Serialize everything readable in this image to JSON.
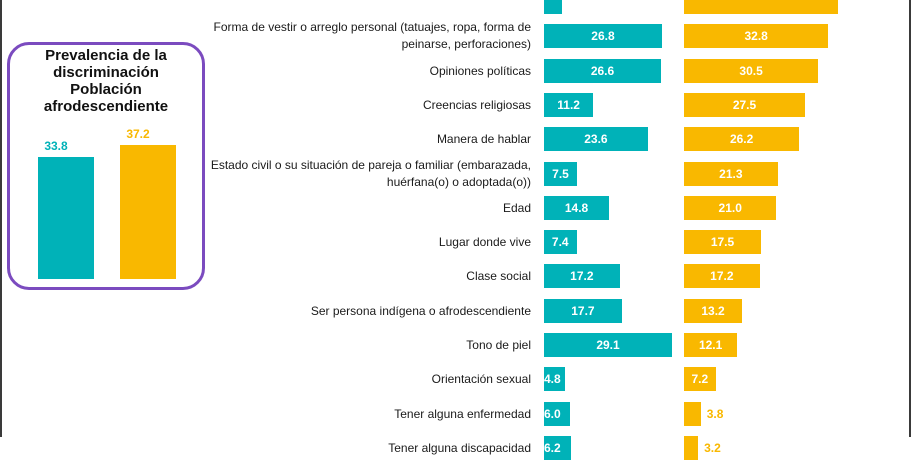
{
  "colors": {
    "teal": "#00B2B8",
    "gold": "#F9B800",
    "purple": "#7B4BBF"
  },
  "inset": {
    "title_lines": [
      "Prevalencia de la",
      "discriminación",
      "Población",
      "afrodescendiente"
    ],
    "values": [
      33.8,
      37.2
    ],
    "labels": [
      "33.8",
      "37.2"
    ]
  },
  "chart_data": {
    "type": "bar",
    "orientation": "horizontal",
    "categories": [
      "",
      "Forma de vestir o arreglo personal (tatuajes, ropa, forma de peinarse, perforaciones)",
      "Opiniones políticas",
      "Creencias religiosas",
      "Manera de hablar",
      "Estado civil o su situación de pareja o familiar (embarazada, huérfana(o) o adoptada(o))",
      "Edad",
      "Lugar donde vive",
      "Clase social",
      "Ser persona indígena o afrodescendiente",
      "Tono de piel",
      "Orientación sexual",
      "Tener alguna enfermedad",
      "Tener alguna discapacidad"
    ],
    "series": [
      {
        "values": [
          4.0,
          26.8,
          26.6,
          11.2,
          23.6,
          7.5,
          14.8,
          7.4,
          17.2,
          17.7,
          29.1,
          4.8,
          6.0,
          6.2
        ],
        "labels": [
          "",
          "26.8",
          "26.6",
          "11.2",
          "23.6",
          "7.5",
          "14.8",
          "7.4",
          "17.2",
          "17.7",
          "29.1",
          "4.8",
          "6.0",
          "6.2"
        ]
      },
      {
        "values": [
          35.0,
          32.8,
          30.5,
          27.5,
          26.2,
          21.3,
          21.0,
          17.5,
          17.2,
          13.2,
          12.1,
          7.2,
          3.8,
          3.2
        ],
        "labels": [
          "",
          "32.8",
          "30.5",
          "27.5",
          "26.2",
          "21.3",
          "21.0",
          "17.5",
          "17.2",
          "13.2",
          "12.1",
          "7.2",
          "3.8",
          "3.2"
        ]
      }
    ]
  }
}
